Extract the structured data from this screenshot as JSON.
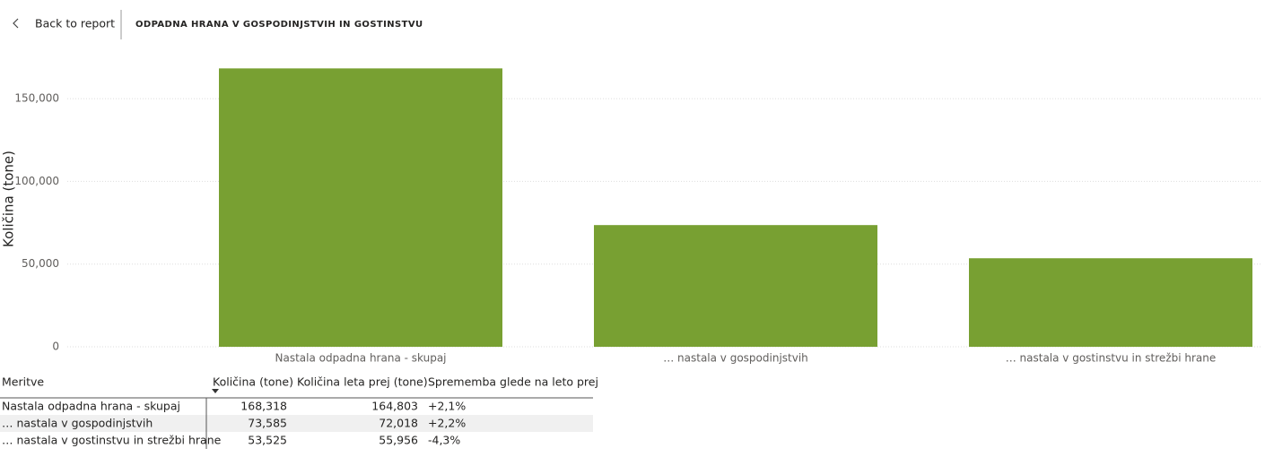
{
  "header": {
    "back": "Back to report",
    "title": "ODPADNA HRANA V GOSPODINJSTVIH IN GOSTINSTVU"
  },
  "chart_data": {
    "type": "bar",
    "y_label": "Količina (tone)",
    "categories": [
      "Nastala odpadna hrana - skupaj",
      "… nastala v gospodinjstvih",
      "… nastala v gostinstvu in strežbi hrane"
    ],
    "values": [
      168318,
      73585,
      53525
    ],
    "color": "#78a032",
    "ylim": [
      0,
      175000
    ],
    "yticks": [
      0,
      {
        "value": 50000,
        "label": "50,000"
      },
      {
        "value": 100000,
        "label": "100,000"
      },
      {
        "value": 150000,
        "label": "150,000"
      }
    ],
    "grid": true
  },
  "table": {
    "columns": [
      "Meritve",
      "Količina (tone)",
      "Količina leta prej (tone)",
      "Sprememba glede na leto prej"
    ],
    "rows": [
      [
        "Nastala odpadna hrana - skupaj",
        "168,318",
        "164,803",
        "+2,1%"
      ],
      [
        "… nastala v gospodinjstvih",
        "73,585",
        "72,018",
        "+2,2%"
      ],
      [
        "… nastala v gostinstvu in strežbi hrane",
        "53,525",
        "55,956",
        "-4,3%"
      ]
    ]
  }
}
